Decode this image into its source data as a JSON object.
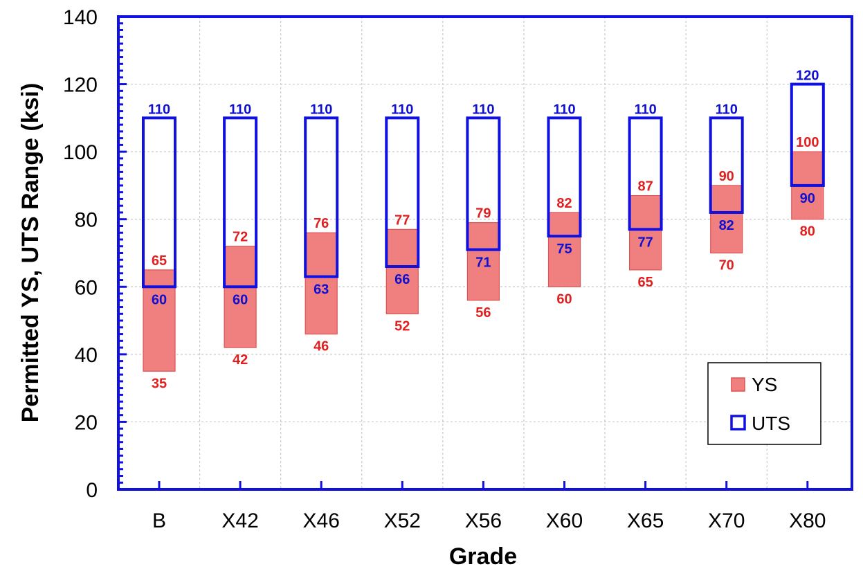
{
  "chart_data": {
    "type": "bar",
    "subtype": "floating-range",
    "title": "",
    "xlabel": "Grade",
    "ylabel": "Permitted YS, UTS Range (ksi)",
    "ylim": [
      0,
      140
    ],
    "yticks": [
      "0",
      "20",
      "40",
      "60",
      "80",
      "100",
      "120",
      "140"
    ],
    "categories": [
      "B",
      "X42",
      "X46",
      "X52",
      "X56",
      "X60",
      "X65",
      "X70",
      "X80"
    ],
    "grid": true,
    "legend_position": "bottom-right",
    "series": [
      {
        "name": "YS",
        "style": "filled",
        "color": "#f08080",
        "edge_color": "#e05050",
        "label_color": "#e02020",
        "min": [
          35,
          42,
          46,
          52,
          56,
          60,
          65,
          70,
          80
        ],
        "max": [
          65,
          72,
          76,
          77,
          79,
          82,
          87,
          90,
          100
        ],
        "min_labels": [
          "35",
          "42",
          "46",
          "52",
          "56",
          "60",
          "65",
          "70",
          "80"
        ],
        "max_labels": [
          "65",
          "72",
          "76",
          "77",
          "79",
          "82",
          "87",
          "90",
          "100"
        ]
      },
      {
        "name": "UTS",
        "style": "outline",
        "color": "#1010e0",
        "label_color": "#1010d0",
        "min": [
          60,
          60,
          63,
          66,
          71,
          75,
          77,
          82,
          90
        ],
        "max": [
          110,
          110,
          110,
          110,
          110,
          110,
          110,
          110,
          120
        ],
        "min_labels": [
          "60",
          "60",
          "63",
          "66",
          "71",
          "75",
          "77",
          "82",
          "90"
        ],
        "max_labels": [
          "110",
          "110",
          "110",
          "110",
          "110",
          "110",
          "110",
          "110",
          "120"
        ]
      }
    ]
  },
  "colors": {
    "frame": "#1010e0",
    "grid": "#c8c8c8"
  }
}
